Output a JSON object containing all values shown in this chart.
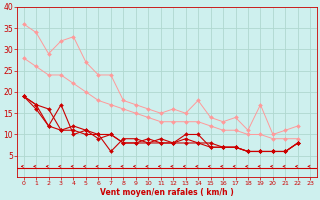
{
  "bg_color": "#cef0ee",
  "grid_color": "#b0d8d0",
  "line_color_light": "#ff9999",
  "line_color_dark": "#cc0000",
  "arrow_color": "#cc0000",
  "xlabel": "Vent moyen/en rafales ( km/h )",
  "xlabel_color": "#cc0000",
  "tick_color": "#cc0000",
  "xlim": [
    -0.5,
    23.5
  ],
  "ylim": [
    0,
    40
  ],
  "yticks": [
    5,
    10,
    15,
    20,
    25,
    30,
    35,
    40
  ],
  "xticks": [
    0,
    1,
    2,
    3,
    4,
    5,
    6,
    7,
    8,
    9,
    10,
    11,
    12,
    13,
    14,
    15,
    16,
    17,
    18,
    19,
    20,
    21,
    22,
    23
  ],
  "series_light": [
    [
      36,
      34,
      29,
      32,
      33,
      27,
      24,
      24,
      18,
      17,
      16,
      15,
      16,
      15,
      18,
      14,
      13,
      14,
      11,
      17,
      10,
      11,
      12
    ],
    [
      28,
      26,
      24,
      24,
      22,
      20,
      18,
      17,
      16,
      15,
      14,
      13,
      13,
      13,
      13,
      12,
      11,
      11,
      10,
      10,
      9,
      9,
      9
    ]
  ],
  "series_dark": [
    [
      19,
      17,
      12,
      11,
      11,
      10,
      10,
      6,
      9,
      9,
      8,
      9,
      8,
      10,
      10,
      7,
      7,
      7,
      6,
      6,
      6,
      6,
      8
    ],
    [
      19,
      16,
      12,
      17,
      10,
      11,
      10,
      10,
      8,
      8,
      9,
      8,
      8,
      9,
      8,
      8,
      7,
      7,
      6,
      6,
      6,
      6,
      8
    ],
    [
      19,
      17,
      16,
      11,
      12,
      11,
      9,
      10,
      8,
      8,
      8,
      8,
      8,
      8,
      8,
      7,
      7,
      7,
      6,
      6,
      6,
      6,
      8
    ]
  ],
  "marker": "D",
  "markersize_light": 2.0,
  "markersize_dark": 2.0,
  "lw_light": 0.7,
  "lw_dark": 0.8
}
